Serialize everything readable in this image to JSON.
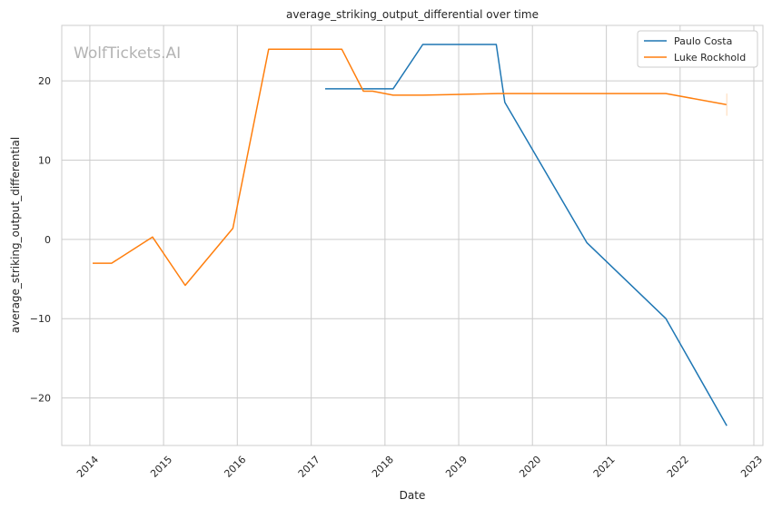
{
  "watermark": "WolfTickets.AI",
  "chart_data": {
    "type": "line",
    "title": "average_striking_output_differential over time",
    "xlabel": "Date",
    "ylabel": "average_striking_output_differential",
    "x_ticks": [
      "2014",
      "2015",
      "2016",
      "2017",
      "2018",
      "2019",
      "2020",
      "2021",
      "2022",
      "2023"
    ],
    "y_ticks": [
      -20,
      -10,
      0,
      10,
      20
    ],
    "xlim": [
      "2013-08-15",
      "2023-02-15"
    ],
    "ylim": [
      -26,
      27
    ],
    "grid": true,
    "legend_position": "top-right",
    "series": [
      {
        "name": "Paulo Costa",
        "color": "#1f77b4",
        "points": [
          [
            "2017-03-11",
            19.0
          ],
          [
            "2017-11-04",
            19.0
          ],
          [
            "2018-02-10",
            19.0
          ],
          [
            "2018-07-07",
            24.6
          ],
          [
            "2019-07-06",
            24.6
          ],
          [
            "2019-08-17",
            17.3
          ],
          [
            "2020-09-26",
            -0.4
          ],
          [
            "2021-10-23",
            -10.0
          ],
          [
            "2022-08-20",
            -23.5
          ]
        ]
      },
      {
        "name": "Luke Rockhold",
        "color": "#ff7f0e",
        "points": [
          [
            "2014-01-15",
            -3.0
          ],
          [
            "2014-04-19",
            -3.0
          ],
          [
            "2014-11-07",
            0.3
          ],
          [
            "2015-04-18",
            -5.8
          ],
          [
            "2015-12-10",
            1.4
          ],
          [
            "2016-06-04",
            24.0
          ],
          [
            "2017-06-01",
            24.0
          ],
          [
            "2017-09-16",
            18.7
          ],
          [
            "2017-11-01",
            18.7
          ],
          [
            "2018-02-10",
            18.2
          ],
          [
            "2018-07-07",
            18.2
          ],
          [
            "2019-07-13",
            18.4
          ],
          [
            "2021-10-23",
            18.4
          ],
          [
            "2022-08-20",
            17.0
          ]
        ]
      }
    ]
  }
}
